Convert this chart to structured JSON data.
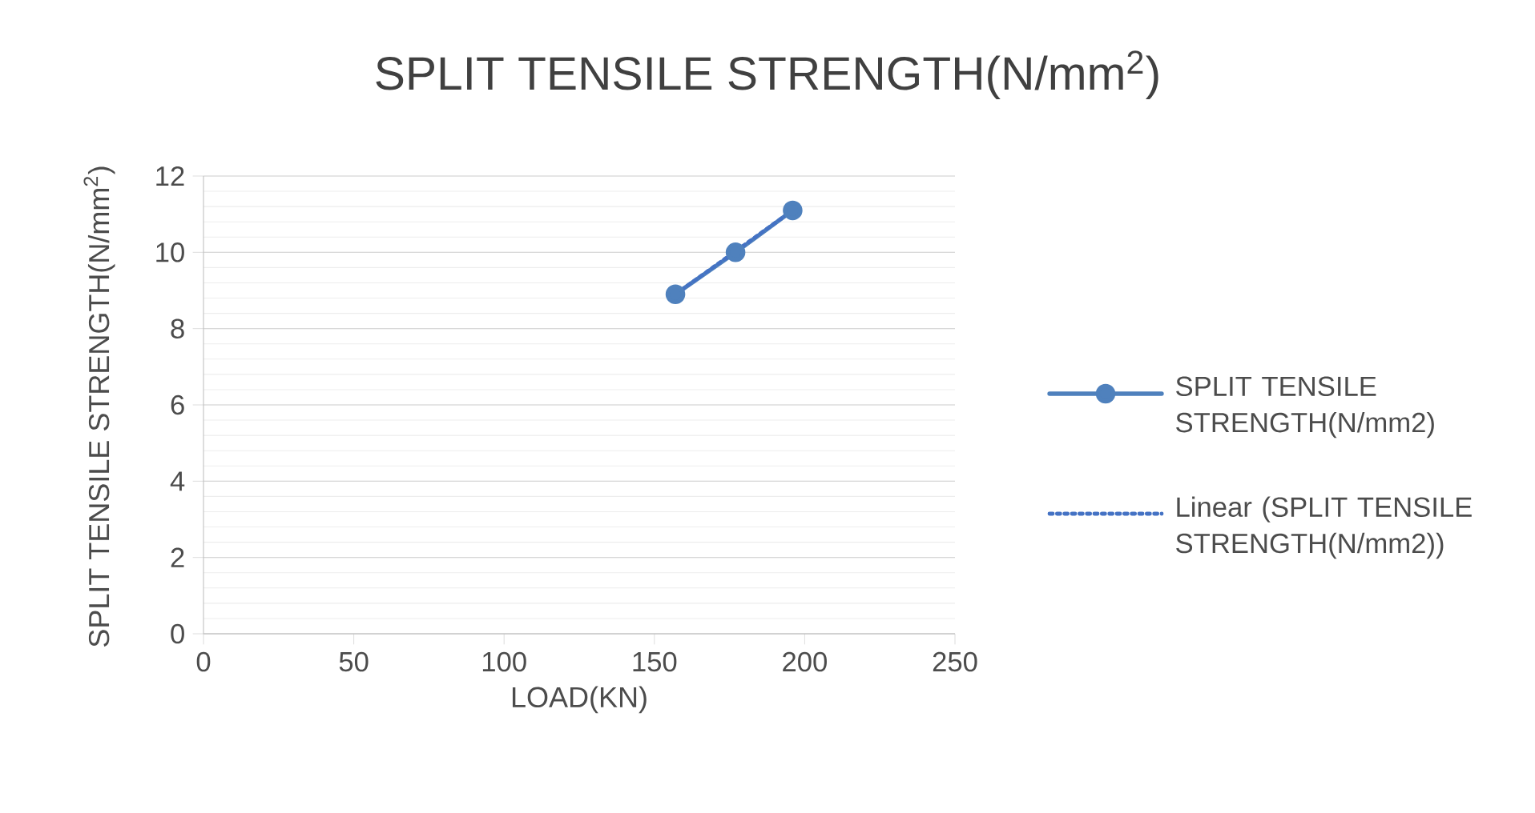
{
  "chart_data": {
    "type": "line",
    "title": "SPLIT TENSILE STRENGTH(N/mm$^{2}$)",
    "xlabel": "LOAD(KN)",
    "ylabel": "SPLIT TENSILE STRENGTH(N/mm$^{2}$)",
    "xlim": [
      0,
      250
    ],
    "xticks": [
      0,
      50,
      100,
      150,
      200,
      250
    ],
    "ylim": [
      0,
      12
    ],
    "yticks": [
      0,
      2,
      4,
      6,
      8,
      10,
      12
    ],
    "grid": "y",
    "legend": "right",
    "series": [
      {
        "name": "SPLIT TENSILE STRENGTH(N/mm2)",
        "color": "#4f81bd",
        "x": [
          157,
          177,
          196
        ],
        "values": [
          8.9,
          10.0,
          11.1
        ],
        "marker": "circle",
        "line_style": "solid"
      },
      {
        "name": "Linear (SPLIT TENSILE STRENGTH(N/mm2))",
        "color": "#4472c4",
        "x": [
          157,
          196
        ],
        "values": [
          8.9,
          11.1
        ],
        "marker": "none",
        "line_style": "dotted"
      }
    ]
  }
}
